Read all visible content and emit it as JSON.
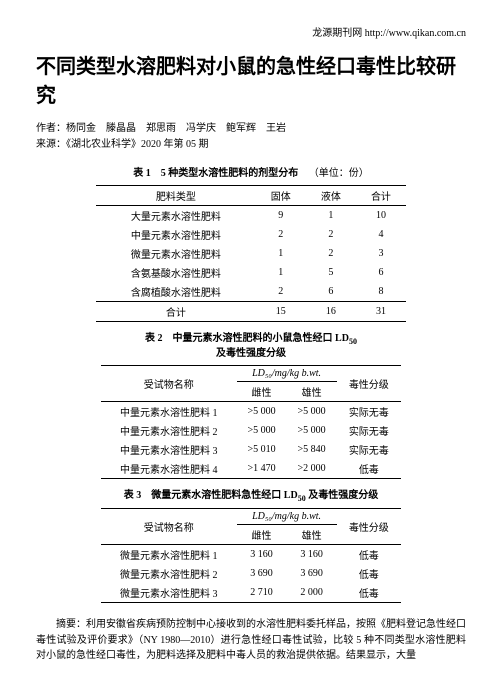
{
  "header": {
    "site_text": "龙源期刊网  http://www.qikan.com.cn"
  },
  "title": "不同类型水溶肥料对小鼠的急性经口毒性比较研究",
  "authors_line": "作者：杨同金　滕晶晶　郑思雨　冯学庆　鲍军辉　王岩",
  "source_line": "来源：《湖北农业科学》2020 年第 05 期",
  "table1": {
    "caption": "表 1　5 种类型水溶性肥料的剂型分布",
    "unit": "（单位：份）",
    "headers": [
      "肥料类型",
      "固体",
      "液体",
      "合计"
    ],
    "rows": [
      [
        "大量元素水溶性肥料",
        "9",
        "1",
        "10"
      ],
      [
        "中量元素水溶性肥料",
        "2",
        "2",
        "4"
      ],
      [
        "微量元素水溶性肥料",
        "1",
        "2",
        "3"
      ],
      [
        "含氨基酸水溶性肥料",
        "1",
        "5",
        "6"
      ],
      [
        "含腐植酸水溶性肥料",
        "2",
        "6",
        "8"
      ],
      [
        "合计",
        "15",
        "16",
        "31"
      ]
    ]
  },
  "table2": {
    "caption_l1": "表 2　中量元素水溶性肥料的小鼠急性经口 LD",
    "caption_sub": "50",
    "caption_l2": "及毒性强度分级",
    "mid_header": "LD₅₀/mg/kg b.wt.",
    "headers": [
      "受试物名称",
      "雌性",
      "雄性",
      "毒性分级"
    ],
    "rows": [
      [
        "中量元素水溶性肥料 1",
        ">5 000",
        ">5 000",
        "实际无毒"
      ],
      [
        "中量元素水溶性肥料 2",
        ">5 000",
        ">5 000",
        "实际无毒"
      ],
      [
        "中量元素水溶性肥料 3",
        ">5 010",
        ">5 840",
        "实际无毒"
      ],
      [
        "中量元素水溶性肥料 4",
        ">1 470",
        ">2 000",
        "低毒"
      ]
    ]
  },
  "table3": {
    "caption": "表 3　微量元素水溶性肥料急性经口 LD",
    "caption_sub": "50",
    "caption_tail": " 及毒性强度分级",
    "mid_header": "LD₅₀/mg/kg b.wt.",
    "headers": [
      "受试物名称",
      "雌性",
      "雄性",
      "毒性分级"
    ],
    "rows": [
      [
        "微量元素水溶性肥料 1",
        "3 160",
        "3 160",
        "低毒"
      ],
      [
        "微量元素水溶性肥料 2",
        "3 690",
        "3 690",
        "低毒"
      ],
      [
        "微量元素水溶性肥料 3",
        "2 710",
        "2 000",
        "低毒"
      ]
    ]
  },
  "abstract": "摘要：利用安徽省疾病预防控制中心接收到的水溶性肥料委托样品，按照《肥料登记急性经口毒性试验及评价要求》（NY 1980—2010）进行急性经口毒性试验，比较 5 种不同类型水溶性肥料对小鼠的急性经口毒性，为肥料选择及肥料中毒人员的救治提供依据。结果显示，大量"
}
